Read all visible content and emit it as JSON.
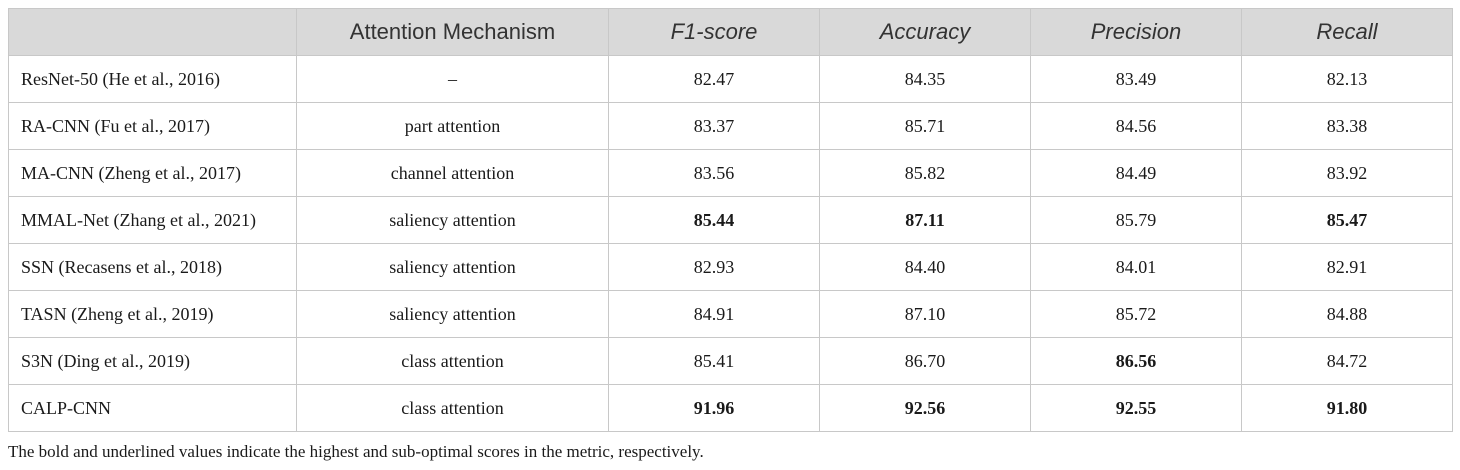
{
  "header": {
    "model": "",
    "attention": "Attention Mechanism",
    "f1": "F1-score",
    "accuracy": "Accuracy",
    "precision": "Precision",
    "recall": "Recall"
  },
  "rows": [
    {
      "model": "ResNet-50 (He et al., 2016)",
      "attention": "–",
      "f1": "82.47",
      "accuracy": "84.35",
      "precision": "83.49",
      "recall": "82.13"
    },
    {
      "model": "RA-CNN (Fu et al., 2017)",
      "attention": "part attention",
      "f1": "83.37",
      "accuracy": "85.71",
      "precision": "84.56",
      "recall": "83.38"
    },
    {
      "model": "MA-CNN (Zheng et al., 2017)",
      "attention": "channel attention",
      "f1": "83.56",
      "accuracy": "85.82",
      "precision": "84.49",
      "recall": "83.92"
    },
    {
      "model": "MMAL-Net (Zhang et al., 2021)",
      "attention": "saliency attention",
      "f1": "85.44",
      "accuracy": "87.11",
      "precision": "85.79",
      "recall": "85.47"
    },
    {
      "model": "SSN (Recasens et al., 2018)",
      "attention": "saliency attention",
      "f1": "82.93",
      "accuracy": "84.40",
      "precision": "84.01",
      "recall": "82.91"
    },
    {
      "model": "TASN (Zheng et al., 2019)",
      "attention": "saliency attention",
      "f1": "84.91",
      "accuracy": "87.10",
      "precision": "85.72",
      "recall": "84.88"
    },
    {
      "model": "S3N (Ding et al., 2019)",
      "attention": "class attention",
      "f1": "85.41",
      "accuracy": "86.70",
      "precision": "86.56",
      "recall": "84.72"
    },
    {
      "model": "CALP-CNN",
      "attention": "class attention",
      "f1": "91.96",
      "accuracy": "92.56",
      "precision": "92.55",
      "recall": "91.80"
    }
  ],
  "footnote": "The bold and underlined values indicate the highest and sub-optimal scores in the metric, respectively."
}
